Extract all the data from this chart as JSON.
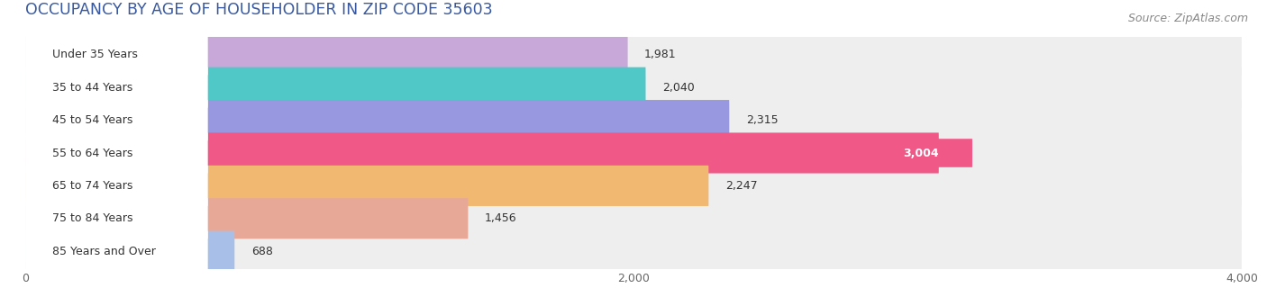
{
  "title": "OCCUPANCY BY AGE OF HOUSEHOLDER IN ZIP CODE 35603",
  "source": "Source: ZipAtlas.com",
  "categories": [
    "Under 35 Years",
    "35 to 44 Years",
    "45 to 54 Years",
    "55 to 64 Years",
    "65 to 74 Years",
    "75 to 84 Years",
    "85 Years and Over"
  ],
  "values": [
    1981,
    2040,
    2315,
    3004,
    2247,
    1456,
    688
  ],
  "bar_colors": [
    "#c8a8d8",
    "#50c8c8",
    "#9898e0",
    "#f05888",
    "#f0b870",
    "#e8a898",
    "#a8c0e8"
  ],
  "bar_bg_color": "#eeeeee",
  "xlim": [
    0,
    4000
  ],
  "xticks": [
    0,
    2000,
    4000
  ],
  "title_color": "#3858a0",
  "title_fontsize": 12.5,
  "label_fontsize": 9,
  "value_fontsize": 9,
  "source_fontsize": 9,
  "bar_height": 0.62,
  "background_color": "#ffffff",
  "highlight_bar_index": 3,
  "highlight_text_color": "#ffffff",
  "highlight_badge_color": "#f05888"
}
